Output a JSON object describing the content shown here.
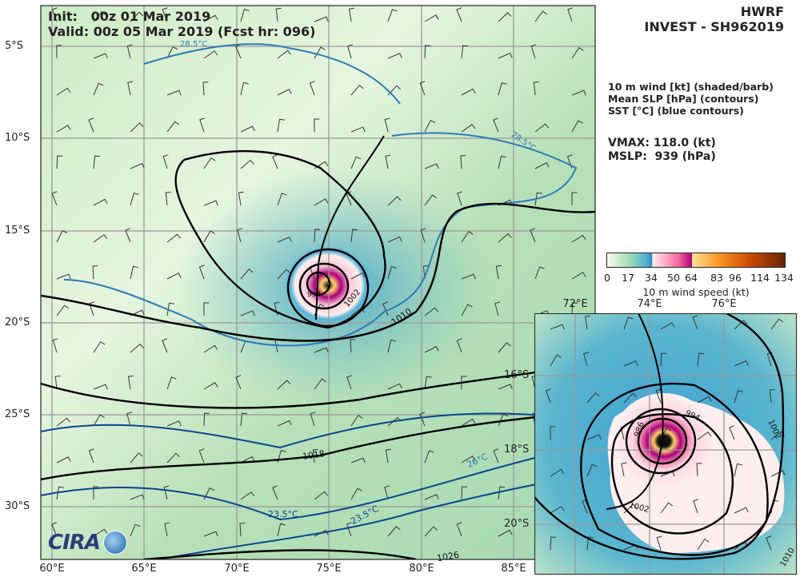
{
  "title": {
    "model": "HWRF",
    "storm": "INVEST - SH962019"
  },
  "init_text": "Init:   00z 01 Mar 2019",
  "valid_text": "Valid: 00z 05 Mar 2019 (Fcst hr: 096)",
  "legend": [
    "10 m wind [kt] (shaded/barb)",
    "Mean SLP [hPa] (contours)",
    "SST [°C] (blue contours)"
  ],
  "stats": {
    "vmax": "VMAX: 118.0 (kt)",
    "mslp": "MSLP:  939 (hPa)"
  },
  "colorbar": {
    "label": "10 m wind speed (kt)",
    "ticks": [
      "0",
      "17",
      "34",
      "50",
      "64",
      "83",
      "96",
      "114",
      "134"
    ],
    "colors": [
      "#f7fcf0",
      "#a8ddb5",
      "#4eb3d3",
      "#2b8cbe",
      "#fff0f0",
      "#f768a1",
      "#ae017e",
      "#fee391",
      "#fe9929",
      "#cc4c02",
      "#662506"
    ]
  },
  "main_map": {
    "lon_ticks": [
      "60°E",
      "65°E",
      "70°E",
      "75°E",
      "80°E",
      "85°E"
    ],
    "lat_ticks": [
      "5°S",
      "10°S",
      "15°S",
      "20°S",
      "25°S",
      "30°S"
    ],
    "contour_labels": {
      "sst1": "28.5°C",
      "sst2": "28.5°C",
      "sst3": "26°C",
      "sst4": "23.5°C",
      "sst5": "23.5°C",
      "p1010": "1010",
      "p1002": "1002",
      "p994": "994",
      "p1018": "1018",
      "p1026": "1026"
    }
  },
  "inset_map": {
    "lon_ticks": [
      "72°E",
      "74°E",
      "76°E"
    ],
    "lat_ticks": [
      "16°S",
      "18°S",
      "20°S"
    ],
    "contour_labels": {
      "p994": "994",
      "p1002a": "1002",
      "p1002b": "1002",
      "p1010": "1010",
      "p986": "986"
    }
  },
  "logo": "CIRA"
}
